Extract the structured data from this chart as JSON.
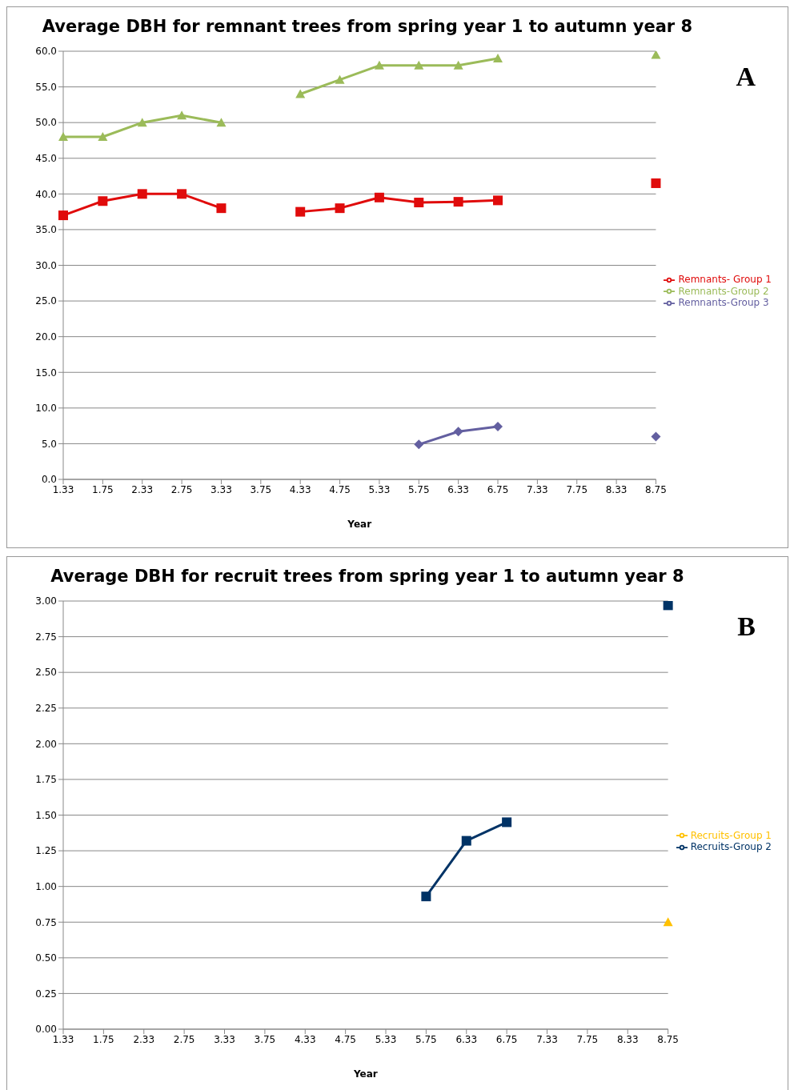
{
  "chart_data": [
    {
      "type": "line",
      "title": "Average DBH for remnant trees from spring year 1 to autumn year 8",
      "xlabel": "Year",
      "annotations": [
        "A"
      ],
      "categories": [
        "1.33",
        "1.75",
        "2.33",
        "2.75",
        "3.33",
        "3.75",
        "4.33",
        "4.75",
        "5.33",
        "5.75",
        "6.33",
        "6.75",
        "7.33",
        "7.75",
        "8.33",
        "8.75"
      ],
      "series": [
        {
          "name": "Remnants- Group 1",
          "color": "#e00b0b",
          "marker": "square",
          "values": [
            37,
            39,
            40,
            40,
            38,
            null,
            37.5,
            38,
            39.5,
            38.8,
            38.9,
            39.1,
            null,
            null,
            null,
            41.5
          ]
        },
        {
          "name": "Remnants-Group 2",
          "color": "#9bbb59",
          "marker": "triangle",
          "values": [
            48,
            48,
            50,
            51,
            50,
            null,
            54,
            56,
            58,
            58,
            58,
            59,
            null,
            null,
            null,
            59.5
          ]
        },
        {
          "name": "Remnants-Group 3",
          "color": "#635fa0",
          "marker": "diamond",
          "values": [
            null,
            null,
            null,
            null,
            null,
            null,
            null,
            null,
            null,
            4.9,
            6.7,
            7.4,
            null,
            null,
            null,
            6.0
          ]
        }
      ],
      "ylim": [
        0,
        60
      ],
      "yticks": [
        {
          "value": 0,
          "label": "0.0"
        },
        {
          "value": 5,
          "label": "5.0"
        },
        {
          "value": 10,
          "label": "10.0"
        },
        {
          "value": 15,
          "label": "15.0"
        },
        {
          "value": 20,
          "label": "20.0"
        },
        {
          "value": 25,
          "label": "25.0"
        },
        {
          "value": 30,
          "label": "30.0"
        },
        {
          "value": 35,
          "label": "35.0"
        },
        {
          "value": 40,
          "label": "40.0"
        },
        {
          "value": 45,
          "label": "45.0"
        },
        {
          "value": 50,
          "label": "50.0"
        },
        {
          "value": 55,
          "label": "55.0"
        },
        {
          "value": 60,
          "label": "60.0"
        }
      ],
      "grid": "y",
      "legend": "right"
    },
    {
      "type": "line",
      "title": "Average DBH for recruit trees from spring year 1 to autumn year 8",
      "xlabel": "Year",
      "annotations": [
        "B"
      ],
      "categories": [
        "1.33",
        "1.75",
        "2.33",
        "2.75",
        "3.33",
        "3.75",
        "4.33",
        "4.75",
        "5.33",
        "5.75",
        "6.33",
        "6.75",
        "7.33",
        "7.75",
        "8.33",
        "8.75"
      ],
      "series": [
        {
          "name": "Recruits-Group 1",
          "color": "#ffc000",
          "marker": "triangle",
          "values": [
            null,
            null,
            null,
            null,
            null,
            null,
            null,
            null,
            null,
            null,
            null,
            null,
            null,
            null,
            null,
            0.75
          ]
        },
        {
          "name": "Recruits-Group 2",
          "color": "#003366",
          "marker": "square",
          "values": [
            null,
            null,
            null,
            null,
            null,
            null,
            null,
            null,
            null,
            0.93,
            1.32,
            1.45,
            null,
            null,
            null,
            2.97
          ]
        }
      ],
      "ylim": [
        0,
        3
      ],
      "yticks": [
        {
          "value": 0,
          "label": "0.00"
        },
        {
          "value": 0.25,
          "label": "0.25"
        },
        {
          "value": 0.5,
          "label": "0.50"
        },
        {
          "value": 0.75,
          "label": "0.75"
        },
        {
          "value": 1,
          "label": "1.00"
        },
        {
          "value": 1.25,
          "label": "1.25"
        },
        {
          "value": 1.5,
          "label": "1.50"
        },
        {
          "value": 1.75,
          "label": "1.75"
        },
        {
          "value": 2,
          "label": "2.00"
        },
        {
          "value": 2.25,
          "label": "2.25"
        },
        {
          "value": 2.5,
          "label": "2.50"
        },
        {
          "value": 2.75,
          "label": "2.75"
        },
        {
          "value": 3,
          "label": "3.00"
        }
      ],
      "grid": "y",
      "legend": "right"
    }
  ]
}
